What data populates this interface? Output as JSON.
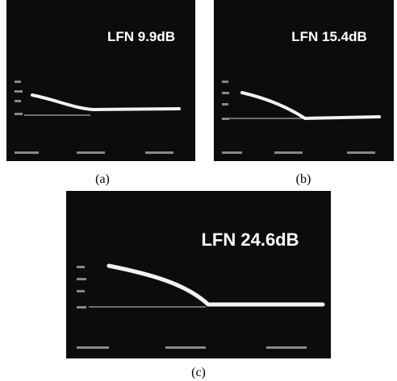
{
  "panels": [
    {
      "label": "LFN 9.9dB",
      "caption": "(a)"
    },
    {
      "label": "LFN 15.4dB",
      "caption": "(b)"
    },
    {
      "label": "LFN 24.6dB",
      "caption": "(c)"
    }
  ]
}
